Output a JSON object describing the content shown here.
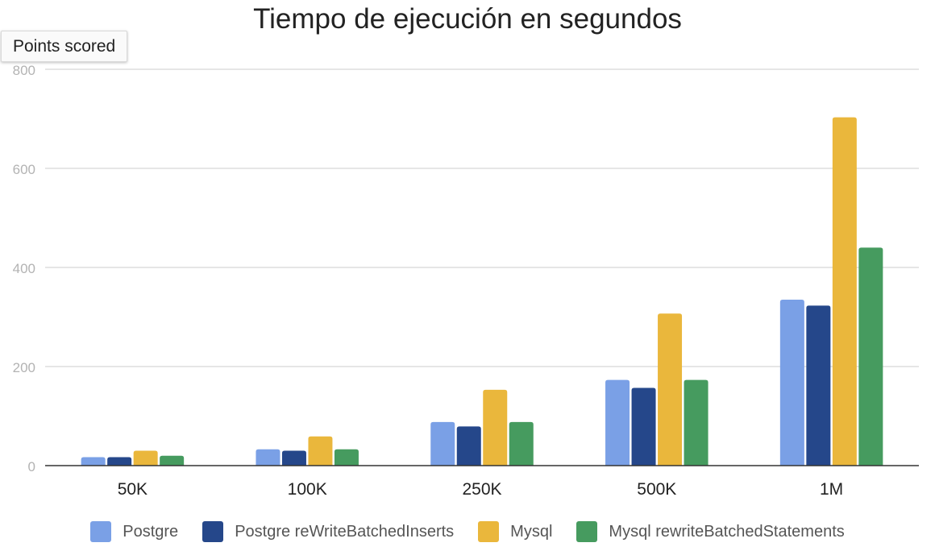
{
  "tooltip": {
    "text": "Points scored"
  },
  "chart_data": {
    "type": "bar",
    "title": "Tiempo de ejecución en segundos",
    "xlabel": "",
    "ylabel": "",
    "categories": [
      "50K",
      "100K",
      "250K",
      "500K",
      "1M"
    ],
    "ylim": [
      0,
      800
    ],
    "yticks": [
      0,
      200,
      400,
      600,
      800
    ],
    "grid": true,
    "legend_position": "bottom",
    "series": [
      {
        "name": "Postgre",
        "color": "#7aa0e6",
        "values": [
          17,
          33,
          88,
          173,
          335
        ]
      },
      {
        "name": "Postgre reWriteBatchedInserts",
        "color": "#25478a",
        "values": [
          17,
          30,
          79,
          157,
          323
        ]
      },
      {
        "name": "Mysql",
        "color": "#eab73c",
        "values": [
          30,
          59,
          153,
          307,
          703
        ]
      },
      {
        "name": "Mysql rewriteBatchedStatements",
        "color": "#469b5f",
        "values": [
          20,
          33,
          88,
          173,
          440
        ]
      }
    ]
  }
}
